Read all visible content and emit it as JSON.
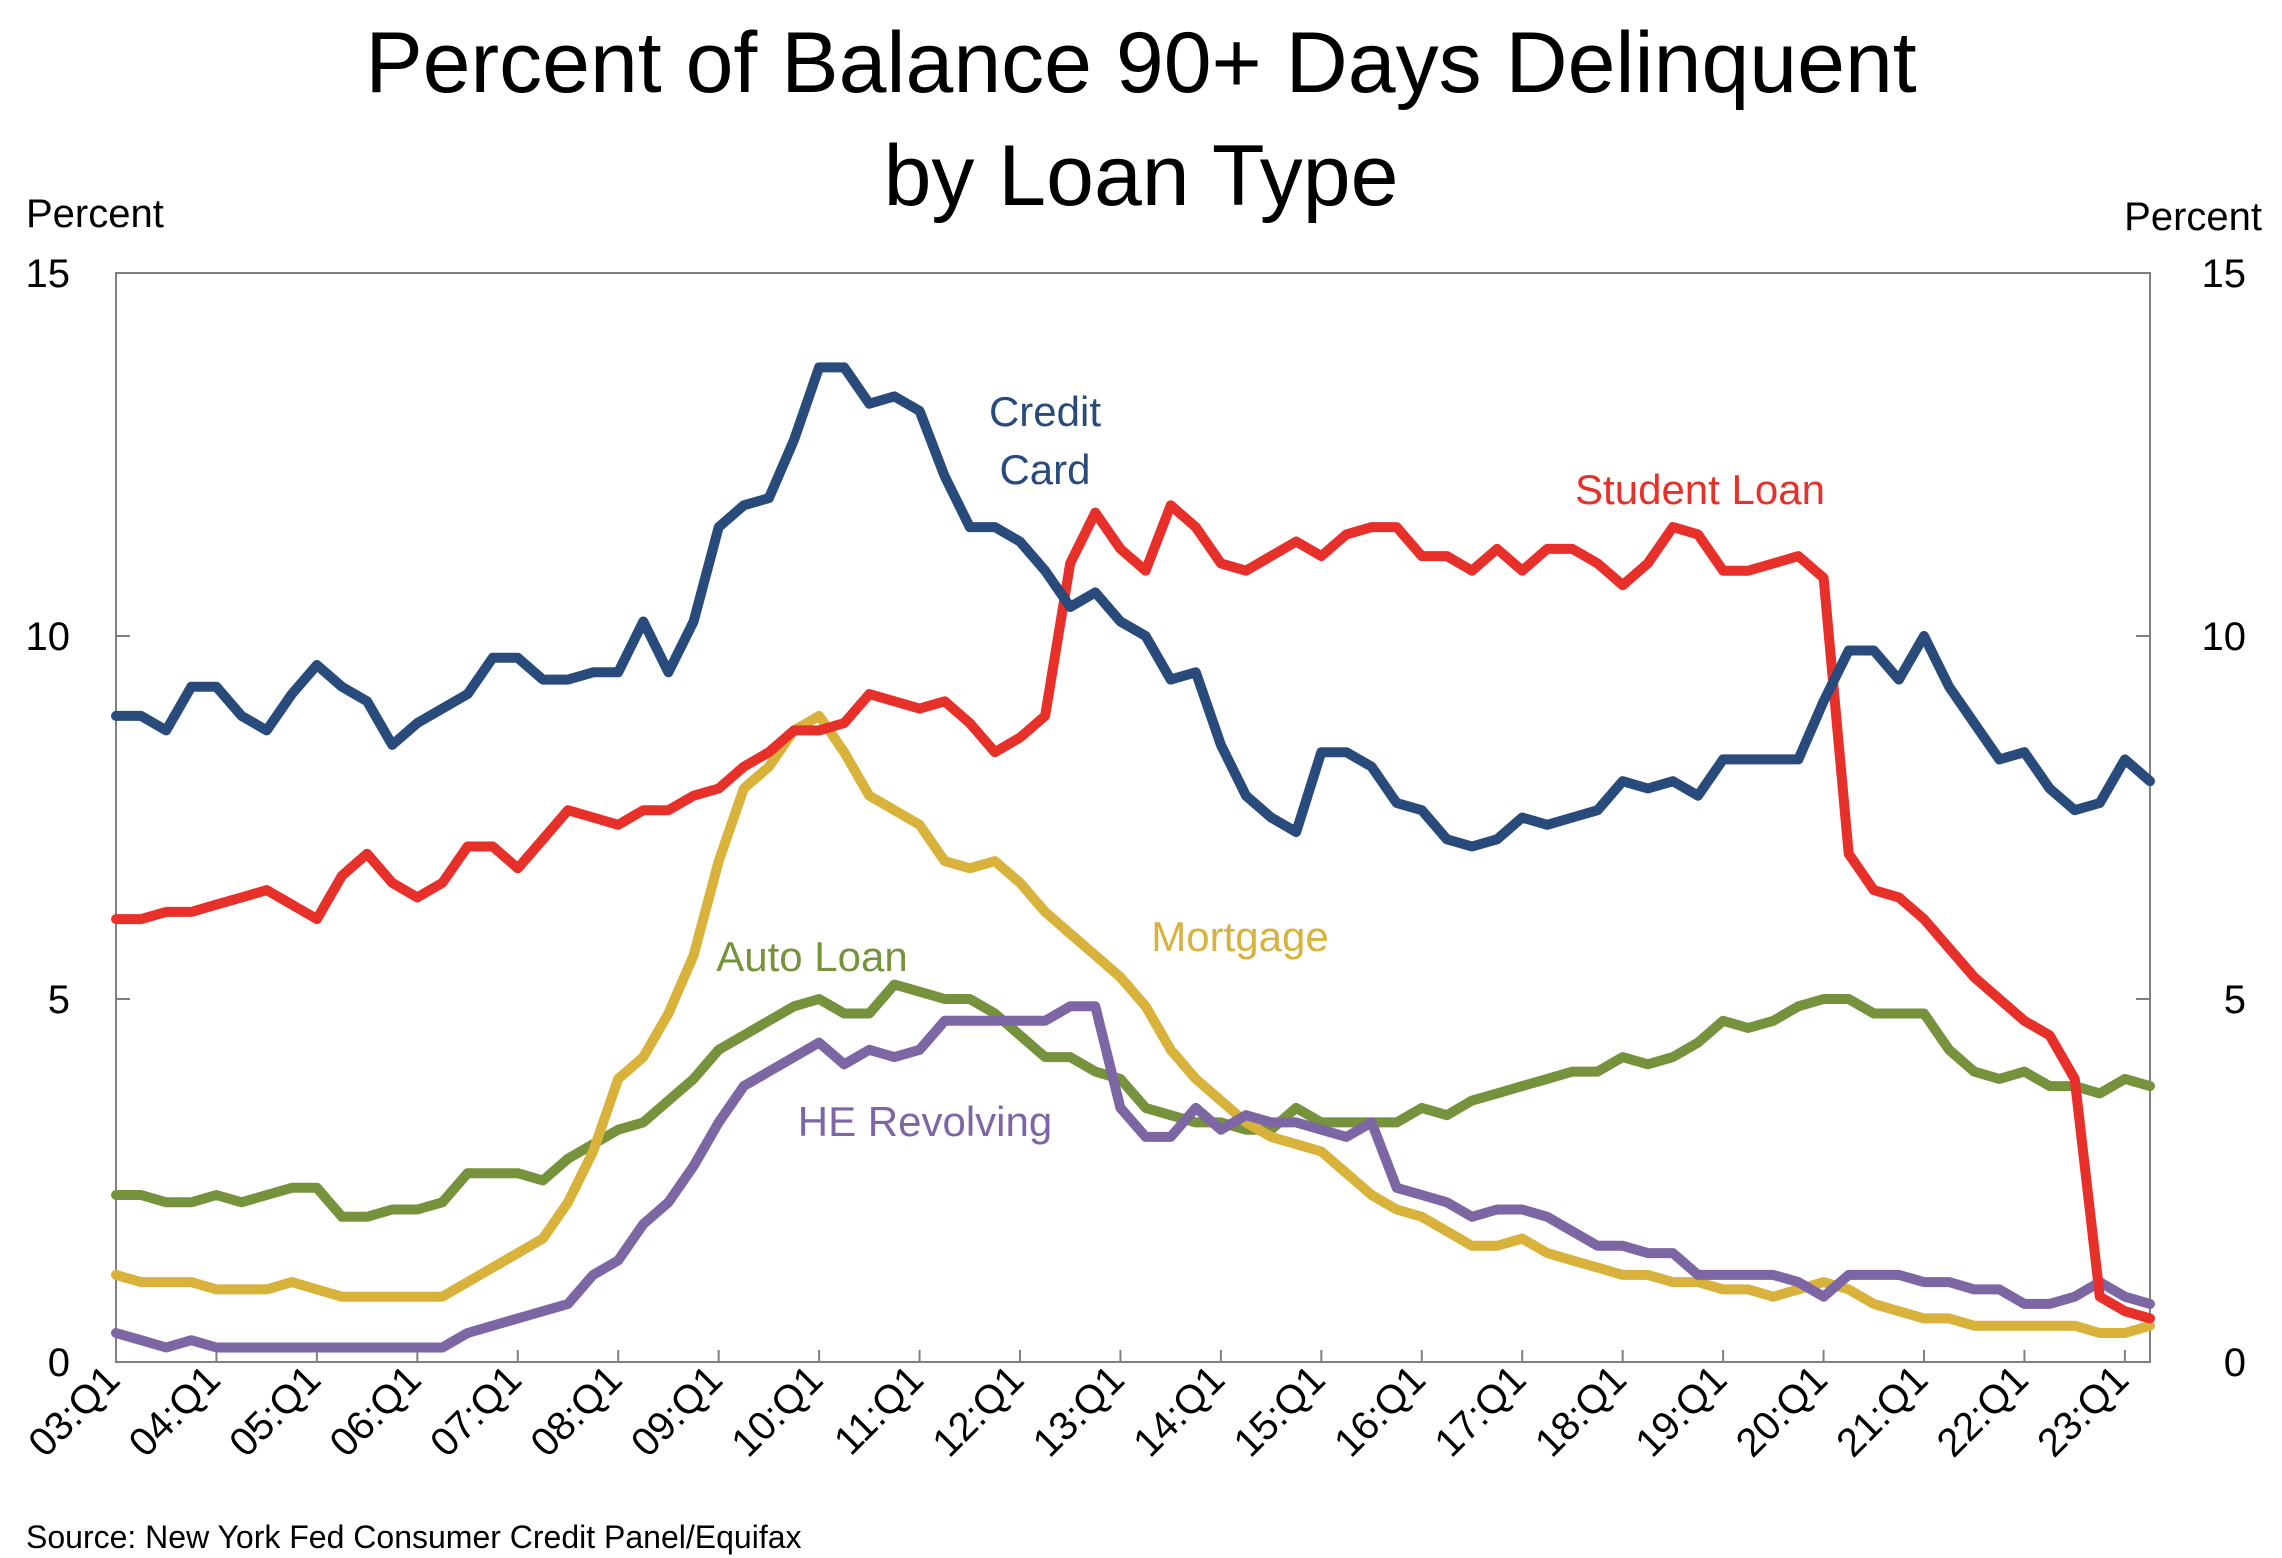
{
  "chart_data": {
    "type": "line",
    "title_line1": "Percent of Balance 90+ Days Delinquent",
    "title_line2": "by Loan Type",
    "ylabel_left": "Percent",
    "ylabel_right": "Percent",
    "ylim": [
      0,
      15
    ],
    "yticks": [
      0,
      5,
      10,
      15
    ],
    "x_tick_labels": [
      "03:Q1",
      "04:Q1",
      "05:Q1",
      "06:Q1",
      "07:Q1",
      "08:Q1",
      "09:Q1",
      "10:Q1",
      "11:Q1",
      "12:Q1",
      "13:Q1",
      "14:Q1",
      "15:Q1",
      "16:Q1",
      "17:Q1",
      "18:Q1",
      "19:Q1",
      "20:Q1",
      "21:Q1",
      "22:Q1",
      "23:Q1"
    ],
    "source": "Source: New York Fed Consumer Credit Panel/Equifax",
    "x_start": "2003 Q1",
    "x_end": "2023 Q2",
    "series": [
      {
        "name": "Credit Card",
        "label_lines": [
          "Credit",
          "Card"
        ],
        "color": "#284b7c",
        "values": [
          8.9,
          8.9,
          8.7,
          9.3,
          9.3,
          8.9,
          8.7,
          9.2,
          9.6,
          9.3,
          9.1,
          8.5,
          8.8,
          9.0,
          9.2,
          9.7,
          9.7,
          9.4,
          9.4,
          9.5,
          9.5,
          10.2,
          9.5,
          10.2,
          11.5,
          11.8,
          11.9,
          12.7,
          13.7,
          13.7,
          13.2,
          13.3,
          13.1,
          12.2,
          11.5,
          11.5,
          11.3,
          10.9,
          10.4,
          10.6,
          10.2,
          10.0,
          9.4,
          9.5,
          8.5,
          7.8,
          7.5,
          7.3,
          8.4,
          8.4,
          8.2,
          7.7,
          7.6,
          7.2,
          7.1,
          7.2,
          7.5,
          7.4,
          7.5,
          7.6,
          8.0,
          7.9,
          8.0,
          7.8,
          8.3,
          8.3,
          8.3,
          8.3,
          9.1,
          9.8,
          9.8,
          9.4,
          10.0,
          9.3,
          8.8,
          8.3,
          8.4,
          7.9,
          7.6,
          7.7,
          8.3,
          8.0
        ]
      },
      {
        "name": "Student Loan",
        "label_lines": [
          "Student Loan"
        ],
        "color": "#e8302a",
        "values": [
          6.1,
          6.1,
          6.2,
          6.2,
          6.3,
          6.4,
          6.5,
          6.3,
          6.1,
          6.7,
          7.0,
          6.6,
          6.4,
          6.6,
          7.1,
          7.1,
          6.8,
          7.2,
          7.6,
          7.5,
          7.4,
          7.6,
          7.6,
          7.8,
          7.9,
          8.2,
          8.4,
          8.7,
          8.7,
          8.8,
          9.2,
          9.1,
          9.0,
          9.1,
          8.8,
          8.4,
          8.6,
          8.9,
          11.0,
          11.7,
          11.2,
          10.9,
          11.8,
          11.5,
          11.0,
          10.9,
          11.1,
          11.3,
          11.1,
          11.4,
          11.5,
          11.5,
          11.1,
          11.1,
          10.9,
          11.2,
          10.9,
          11.2,
          11.2,
          11.0,
          10.7,
          11.0,
          11.5,
          11.4,
          10.9,
          10.9,
          11.0,
          11.1,
          10.8,
          7.0,
          6.5,
          6.4,
          6.1,
          5.7,
          5.3,
          5.0,
          4.7,
          4.5,
          3.9,
          0.9,
          0.7,
          0.6
        ]
      },
      {
        "name": "Auto Loan",
        "label_lines": [
          "Auto Loan"
        ],
        "color": "#77923c",
        "values": [
          2.3,
          2.3,
          2.2,
          2.2,
          2.3,
          2.2,
          2.3,
          2.4,
          2.4,
          2.0,
          2.0,
          2.1,
          2.1,
          2.2,
          2.6,
          2.6,
          2.6,
          2.5,
          2.8,
          3.0,
          3.2,
          3.3,
          3.6,
          3.9,
          4.3,
          4.5,
          4.7,
          4.9,
          5.0,
          4.8,
          4.8,
          5.2,
          5.1,
          5.0,
          5.0,
          4.8,
          4.5,
          4.2,
          4.2,
          4.0,
          3.9,
          3.5,
          3.4,
          3.3,
          3.3,
          3.2,
          3.2,
          3.5,
          3.3,
          3.3,
          3.3,
          3.3,
          3.5,
          3.4,
          3.6,
          3.7,
          3.8,
          3.9,
          4.0,
          4.0,
          4.2,
          4.1,
          4.2,
          4.4,
          4.7,
          4.6,
          4.7,
          4.9,
          5.0,
          5.0,
          4.8,
          4.8,
          4.8,
          4.3,
          4.0,
          3.9,
          4.0,
          3.8,
          3.8,
          3.7,
          3.9,
          3.8
        ]
      },
      {
        "name": "Mortgage",
        "label_lines": [
          "Mortgage"
        ],
        "color": "#d8b23a",
        "values": [
          1.2,
          1.1,
          1.1,
          1.1,
          1.0,
          1.0,
          1.0,
          1.1,
          1.0,
          0.9,
          0.9,
          0.9,
          0.9,
          0.9,
          1.1,
          1.3,
          1.5,
          1.7,
          2.2,
          2.9,
          3.9,
          4.2,
          4.8,
          5.6,
          6.9,
          7.9,
          8.2,
          8.7,
          8.9,
          8.4,
          7.8,
          7.6,
          7.4,
          6.9,
          6.8,
          6.9,
          6.6,
          6.2,
          5.9,
          5.6,
          5.3,
          4.9,
          4.3,
          3.9,
          3.6,
          3.3,
          3.1,
          3.0,
          2.9,
          2.6,
          2.3,
          2.1,
          2.0,
          1.8,
          1.6,
          1.6,
          1.7,
          1.5,
          1.4,
          1.3,
          1.2,
          1.2,
          1.1,
          1.1,
          1.0,
          1.0,
          0.9,
          1.0,
          1.1,
          1.0,
          0.8,
          0.7,
          0.6,
          0.6,
          0.5,
          0.5,
          0.5,
          0.5,
          0.5,
          0.4,
          0.4,
          0.5
        ]
      },
      {
        "name": "HE Revolving",
        "label_lines": [
          "HE Revolving"
        ],
        "color": "#7d66a4",
        "values": [
          0.4,
          0.3,
          0.2,
          0.3,
          0.2,
          0.2,
          0.2,
          0.2,
          0.2,
          0.2,
          0.2,
          0.2,
          0.2,
          0.2,
          0.4,
          0.5,
          0.6,
          0.7,
          0.8,
          1.2,
          1.4,
          1.9,
          2.2,
          2.7,
          3.3,
          3.8,
          4.0,
          4.2,
          4.4,
          4.1,
          4.3,
          4.2,
          4.3,
          4.7,
          4.7,
          4.7,
          4.7,
          4.7,
          4.9,
          4.9,
          3.5,
          3.1,
          3.1,
          3.5,
          3.2,
          3.4,
          3.3,
          3.3,
          3.2,
          3.1,
          3.3,
          2.4,
          2.3,
          2.2,
          2.0,
          2.1,
          2.1,
          2.0,
          1.8,
          1.6,
          1.6,
          1.5,
          1.5,
          1.2,
          1.2,
          1.2,
          1.2,
          1.1,
          0.9,
          1.2,
          1.2,
          1.2,
          1.1,
          1.1,
          1.0,
          1.0,
          0.8,
          0.8,
          0.9,
          1.1,
          0.9,
          0.8
        ]
      }
    ]
  }
}
